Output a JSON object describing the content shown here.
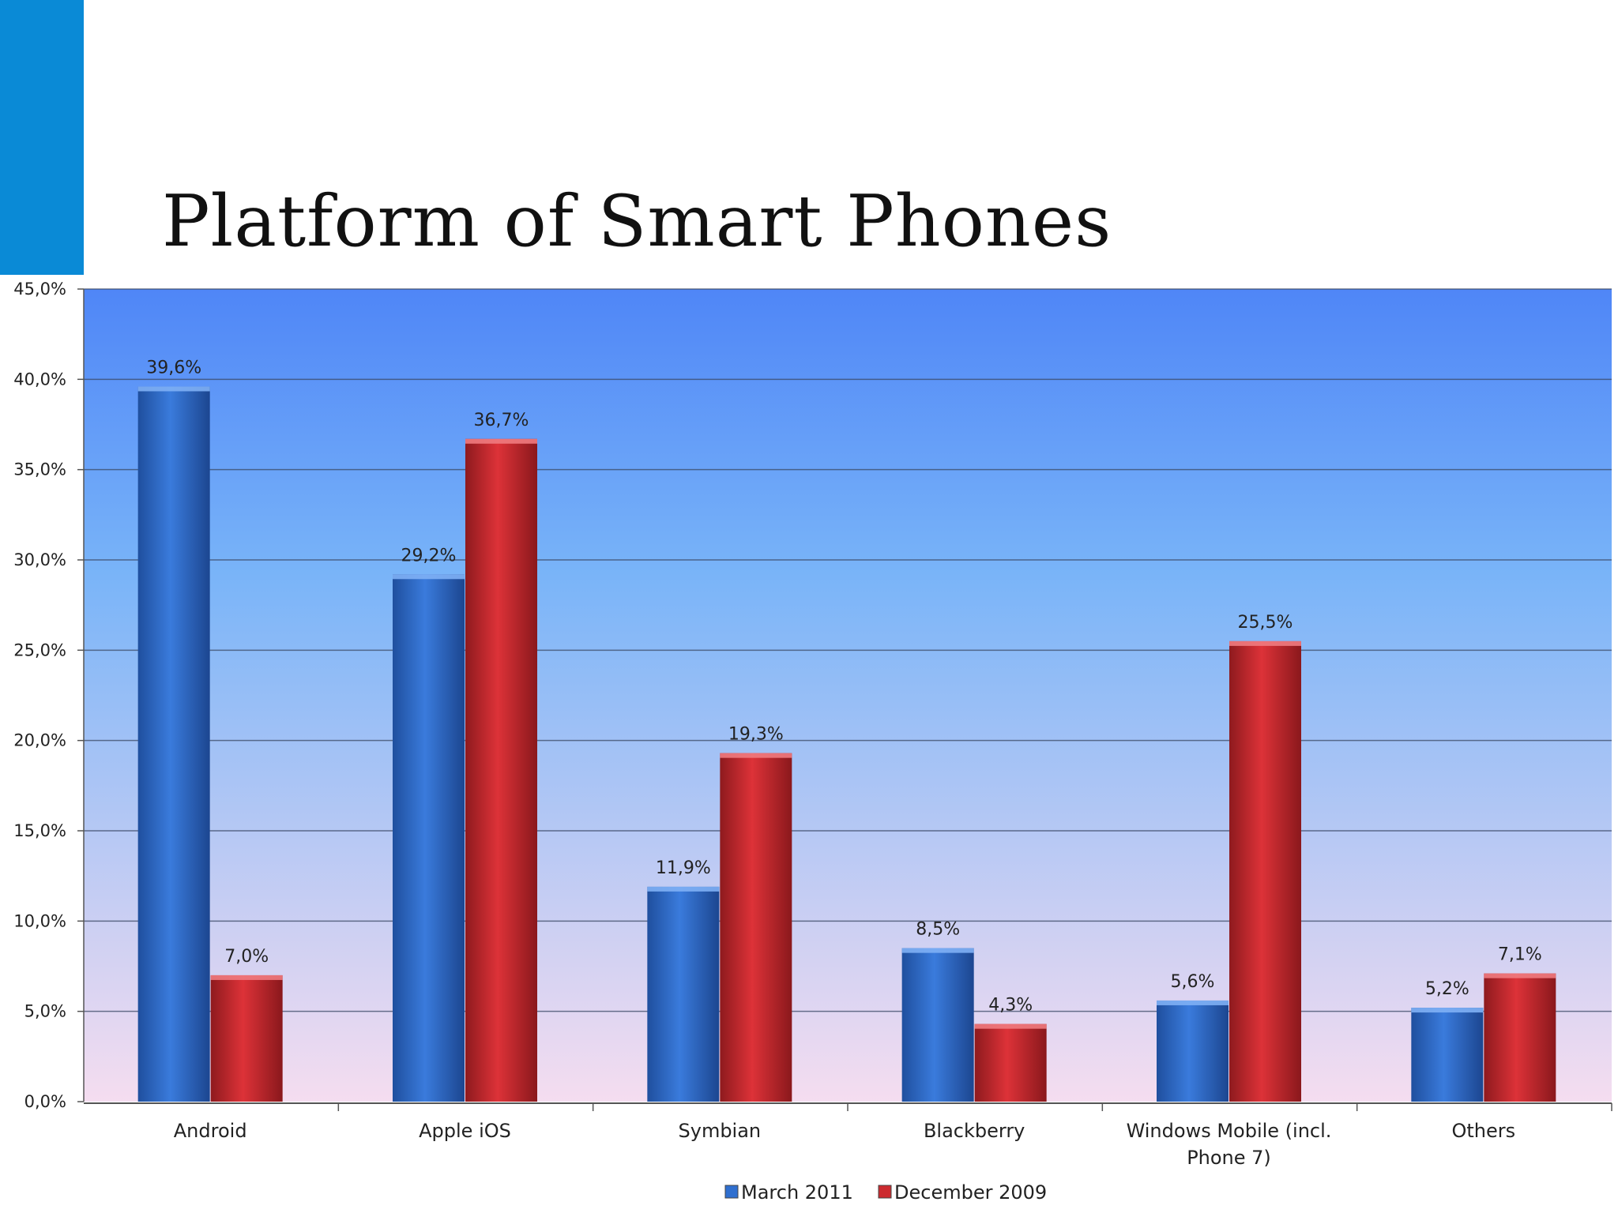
{
  "slide": {
    "title": "Platform of Smart Phones",
    "accent_color": "#0a8ad6"
  },
  "chart_data": {
    "type": "bar",
    "title": "",
    "xlabel": "",
    "ylabel": "",
    "categories": [
      [
        "Android"
      ],
      [
        "Apple iOS"
      ],
      [
        "Symbian"
      ],
      [
        "Blackberry"
      ],
      [
        "Windows Mobile (incl.",
        "Phone 7)"
      ],
      [
        "Others"
      ]
    ],
    "series": [
      {
        "name": "March 2011",
        "values": [
          39.6,
          29.2,
          11.9,
          8.5,
          5.6,
          5.2
        ],
        "labels": [
          "39,6%",
          "29,2%",
          "11,9%",
          "8,5%",
          "5,6%",
          "5,2%"
        ],
        "color": "#2f6fcf"
      },
      {
        "name": "December 2009",
        "values": [
          7.0,
          36.7,
          19.3,
          4.3,
          25.5,
          7.1
        ],
        "labels": [
          "7,0%",
          "36,7%",
          "19,3%",
          "4,3%",
          "25,5%",
          "7,1%"
        ],
        "color": "#cc2a2f"
      }
    ],
    "ylim": [
      0,
      45
    ],
    "yticks": [
      0,
      5,
      10,
      15,
      20,
      25,
      30,
      35,
      40,
      45
    ],
    "ytick_labels": [
      "0,0%",
      "5,0%",
      "10,0%",
      "15,0%",
      "20,0%",
      "25,0%",
      "30,0%",
      "35,0%",
      "40,0%",
      "45,0%"
    ],
    "grid": true,
    "legend": "bottom",
    "background_gradient": [
      "#4f86f7",
      "#79b4f8",
      "#f5ddf0"
    ]
  }
}
